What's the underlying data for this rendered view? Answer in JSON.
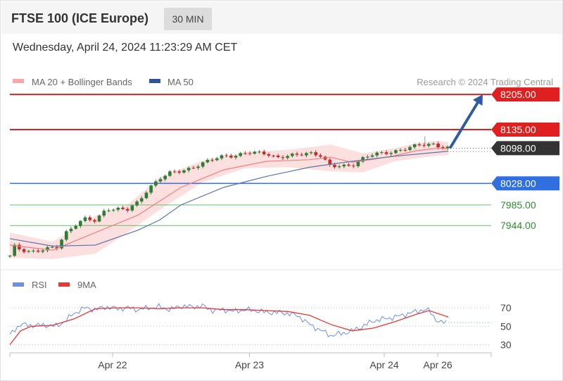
{
  "header": {
    "title": "FTSE 100 (ICE Europe)",
    "timeframe": "30 MIN"
  },
  "timestamp": "Wednesday, April 24, 2024 11:23:29 AM CET",
  "legend": {
    "ma20": {
      "label": "MA 20 + Bollinger Bands",
      "color": "#f08080"
    },
    "ma50": {
      "label": "MA 50",
      "color": "#2f5597"
    },
    "credit": "Research © 2024 Trading Central"
  },
  "colors": {
    "up": "#2e7d32",
    "down": "#c62828",
    "resistance": "#e02020",
    "support_blue": "#2f6fe0",
    "support_green": "#6abf69",
    "arrow": "#2e5c9e",
    "rsi": "#6b8fe8",
    "rsi_ma": "#e53935"
  },
  "chart_data": [
    {
      "type": "candlestick",
      "title": "FTSE 100 (ICE Europe)",
      "ylim": [
        7870,
        8215
      ],
      "levels": [
        {
          "label": "8205.00",
          "value": 8205.0,
          "kind": "resistance"
        },
        {
          "label": "8135.00",
          "value": 8135.0,
          "kind": "resistance"
        },
        {
          "label": "8098.00",
          "value": 8098.0,
          "kind": "last"
        },
        {
          "label": "8028.00",
          "value": 8028.0,
          "kind": "support_blue"
        },
        {
          "label": "7985.00",
          "value": 7985.0,
          "kind": "support_green"
        },
        {
          "label": "7944.00",
          "value": 7944.0,
          "kind": "support_green"
        }
      ],
      "price_path": [
        [
          0,
          7882
        ],
        [
          2,
          7902
        ],
        [
          5,
          7896
        ],
        [
          10,
          7893
        ],
        [
          15,
          7895
        ],
        [
          22,
          7900
        ],
        [
          26,
          7930
        ],
        [
          30,
          7945
        ],
        [
          35,
          7957
        ],
        [
          40,
          7952
        ],
        [
          45,
          7978
        ],
        [
          50,
          7978
        ],
        [
          55,
          7975
        ],
        [
          60,
          7990
        ],
        [
          65,
          8020
        ],
        [
          70,
          8038
        ],
        [
          75,
          8048
        ],
        [
          80,
          8052
        ],
        [
          85,
          8060
        ],
        [
          90,
          8068
        ],
        [
          95,
          8075
        ],
        [
          100,
          8083
        ],
        [
          105,
          8084
        ],
        [
          110,
          8088
        ],
        [
          115,
          8088
        ],
        [
          120,
          8088
        ],
        [
          125,
          8080
        ],
        [
          130,
          8082
        ],
        [
          135,
          8084
        ],
        [
          140,
          8090
        ],
        [
          145,
          8085
        ],
        [
          150,
          8060
        ],
        [
          155,
          8062
        ],
        [
          160,
          8065
        ],
        [
          165,
          8078
        ],
        [
          170,
          8085
        ],
        [
          175,
          8088
        ],
        [
          180,
          8093
        ],
        [
          185,
          8097
        ],
        [
          190,
          8102
        ],
        [
          195,
          8106
        ],
        [
          199,
          8107
        ],
        [
          201,
          8101
        ],
        [
          205,
          8098
        ]
      ],
      "ma20": [
        [
          0,
          7905
        ],
        [
          20,
          7895
        ],
        [
          40,
          7930
        ],
        [
          60,
          7965
        ],
        [
          80,
          8020
        ],
        [
          100,
          8055
        ],
        [
          120,
          8072
        ],
        [
          140,
          8075
        ],
        [
          150,
          8080
        ],
        [
          160,
          8070
        ],
        [
          170,
          8076
        ],
        [
          180,
          8083
        ],
        [
          190,
          8093
        ],
        [
          200,
          8098
        ],
        [
          205,
          8097
        ]
      ],
      "ma50": [
        [
          0,
          7918
        ],
        [
          20,
          7903
        ],
        [
          40,
          7905
        ],
        [
          50,
          7920
        ],
        [
          60,
          7935
        ],
        [
          70,
          7955
        ],
        [
          80,
          7985
        ],
        [
          100,
          8020
        ],
        [
          120,
          8042
        ],
        [
          140,
          8060
        ],
        [
          160,
          8072
        ],
        [
          180,
          8082
        ],
        [
          200,
          8090
        ],
        [
          205,
          8092
        ]
      ],
      "bollinger_upper": [
        [
          0,
          7930
        ],
        [
          20,
          7912
        ],
        [
          40,
          7963
        ],
        [
          55,
          7985
        ],
        [
          70,
          8040
        ],
        [
          90,
          8073
        ],
        [
          110,
          8090
        ],
        [
          130,
          8095
        ],
        [
          150,
          8105
        ],
        [
          165,
          8088
        ],
        [
          180,
          8098
        ],
        [
          190,
          8108
        ],
        [
          200,
          8113
        ],
        [
          205,
          8110
        ]
      ],
      "bollinger_lower": [
        [
          0,
          7880
        ],
        [
          20,
          7877
        ],
        [
          40,
          7888
        ],
        [
          55,
          7930
        ],
        [
          70,
          7975
        ],
        [
          90,
          8030
        ],
        [
          110,
          8058
        ],
        [
          130,
          8060
        ],
        [
          150,
          8052
        ],
        [
          165,
          8050
        ],
        [
          180,
          8072
        ],
        [
          190,
          8078
        ],
        [
          200,
          8083
        ],
        [
          205,
          8084
        ]
      ],
      "x_ticks": [
        {
          "label": "Apr 22",
          "x": 48
        },
        {
          "label": "Apr 23",
          "x": 112
        },
        {
          "label": "Apr 24",
          "x": 175
        },
        {
          "label": "Apr 26",
          "x": 200
        }
      ],
      "xlim": [
        0,
        225
      ]
    },
    {
      "type": "line",
      "series": [
        {
          "name": "RSI",
          "values": [
            [
              0,
              40
            ],
            [
              2,
              46
            ],
            [
              5,
              52
            ],
            [
              9,
              51
            ],
            [
              13,
              51
            ],
            [
              18,
              51
            ],
            [
              22,
              50
            ],
            [
              26,
              56
            ],
            [
              30,
              64
            ],
            [
              35,
              70
            ],
            [
              40,
              68
            ],
            [
              45,
              71
            ],
            [
              50,
              69
            ],
            [
              55,
              70
            ],
            [
              60,
              68
            ],
            [
              65,
              70
            ],
            [
              70,
              71
            ],
            [
              75,
              68
            ],
            [
              80,
              72
            ],
            [
              85,
              71
            ],
            [
              90,
              72
            ],
            [
              95,
              67
            ],
            [
              100,
              68
            ],
            [
              105,
              66
            ],
            [
              110,
              68
            ],
            [
              115,
              67
            ],
            [
              120,
              65
            ],
            [
              125,
              65
            ],
            [
              130,
              64
            ],
            [
              135,
              61
            ],
            [
              140,
              52
            ],
            [
              145,
              46
            ],
            [
              150,
              40
            ],
            [
              155,
              42
            ],
            [
              160,
              45
            ],
            [
              165,
              50
            ],
            [
              170,
              56
            ],
            [
              175,
              58
            ],
            [
              180,
              60
            ],
            [
              185,
              63
            ],
            [
              190,
              66
            ],
            [
              193,
              68
            ],
            [
              196,
              67
            ],
            [
              199,
              58
            ],
            [
              201,
              54
            ],
            [
              205,
              54
            ]
          ]
        },
        {
          "name": "9MA",
          "values": [
            [
              0,
              30
            ],
            [
              5,
              45
            ],
            [
              10,
              50
            ],
            [
              20,
              51
            ],
            [
              30,
              58
            ],
            [
              40,
              69
            ],
            [
              50,
              70
            ],
            [
              60,
              70
            ],
            [
              70,
              69
            ],
            [
              80,
              70
            ],
            [
              90,
              70
            ],
            [
              100,
              68
            ],
            [
              110,
              68
            ],
            [
              120,
              67
            ],
            [
              130,
              66
            ],
            [
              140,
              62
            ],
            [
              150,
              52
            ],
            [
              160,
              45
            ],
            [
              170,
              48
            ],
            [
              180,
              55
            ],
            [
              190,
              63
            ],
            [
              196,
              67
            ],
            [
              205,
              60
            ]
          ]
        }
      ],
      "ylim": [
        25,
        80
      ],
      "y_ticks": [
        "70",
        "50",
        "30"
      ],
      "y_tick_values": [
        70,
        50,
        30
      ]
    }
  ]
}
